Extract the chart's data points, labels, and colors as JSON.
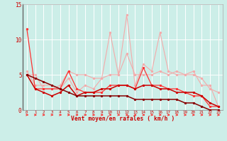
{
  "x": [
    0,
    1,
    2,
    3,
    4,
    5,
    6,
    7,
    8,
    9,
    10,
    11,
    12,
    13,
    14,
    15,
    16,
    17,
    18,
    19,
    20,
    21,
    22,
    23
  ],
  "line_spiky_light": [
    5.5,
    3.5,
    3.5,
    3.5,
    3.0,
    4.5,
    2.5,
    3.5,
    3.0,
    4.5,
    11.0,
    5.0,
    13.5,
    3.5,
    6.5,
    5.5,
    11.0,
    5.5,
    5.0,
    5.0,
    5.5,
    3.5,
    3.5,
    0.5
  ],
  "line_flat_light": [
    5.0,
    5.0,
    3.0,
    3.0,
    3.5,
    5.5,
    5.0,
    5.0,
    4.5,
    4.5,
    5.0,
    5.0,
    8.0,
    5.0,
    5.0,
    5.0,
    5.5,
    5.0,
    5.5,
    5.0,
    5.0,
    4.5,
    3.0,
    2.5
  ],
  "line_starts_high": [
    11.5,
    3.0,
    3.0,
    3.0,
    3.0,
    5.5,
    3.0,
    2.5,
    2.5,
    2.5,
    3.5,
    3.5,
    3.5,
    3.0,
    6.0,
    3.5,
    3.5,
    3.0,
    3.0,
    2.5,
    2.0,
    2.0,
    0.5,
    0.5
  ],
  "line_medium_dark": [
    5.0,
    3.0,
    2.5,
    2.0,
    2.5,
    3.5,
    2.0,
    2.5,
    2.5,
    3.0,
    3.0,
    3.5,
    3.5,
    3.0,
    3.5,
    3.5,
    3.0,
    3.0,
    2.5,
    2.5,
    2.5,
    2.0,
    1.0,
    0.5
  ],
  "line_linear": [
    5.0,
    4.5,
    4.0,
    3.5,
    3.0,
    2.5,
    2.0,
    2.0,
    2.0,
    2.0,
    2.0,
    2.0,
    2.0,
    1.5,
    1.5,
    1.5,
    1.5,
    1.5,
    1.5,
    1.0,
    1.0,
    0.5,
    0.0,
    0.0
  ],
  "yticks": [
    0,
    5,
    10,
    15
  ],
  "xticks": [
    0,
    1,
    2,
    3,
    4,
    5,
    6,
    7,
    8,
    9,
    10,
    11,
    12,
    13,
    14,
    15,
    16,
    17,
    18,
    19,
    20,
    21,
    22,
    23
  ],
  "xlabel": "Vent moyen/en rafales ( km/h )",
  "bg_color": "#cceee8",
  "grid_color": "#ffffff",
  "color_light_pink": "#f4aaaa",
  "color_medium_pink": "#ee8888",
  "color_bright_red": "#ff3333",
  "color_dark_red": "#cc0000",
  "color_darkest": "#880000",
  "arrow_color": "#ff2222",
  "ylim": [
    0,
    15
  ],
  "xlim": [
    -0.5,
    23.5
  ]
}
